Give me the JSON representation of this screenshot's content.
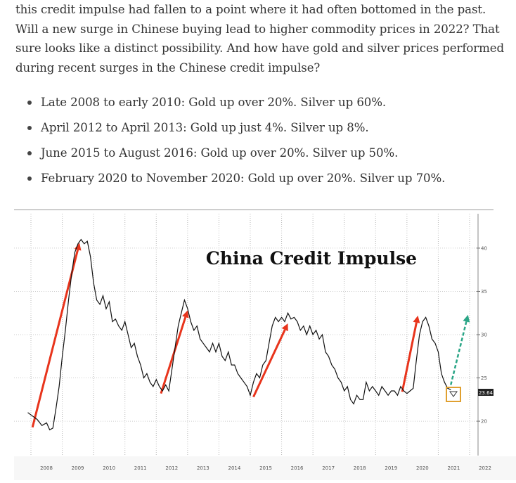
{
  "article": {
    "paragraph": "this credit impulse had fallen to a point where it had often bottomed in the past. Will a new surge in Chinese buying lead to higher commodity prices in 2022? That sure looks like a distinct possibility. And how have gold and silver prices performed during recent surges in the Chinese credit impulse?",
    "bullets": [
      "Late 2008 to early 2010: Gold up over 20%. Silver up 60%.",
      "April 2012 to April 2013: Gold up just 4%. Silver up 8%.",
      "June 2015 to August 2016: Gold up over 20%. Silver up 50%.",
      "February 2020 to November 2020: Gold up over 20%. Silver up 70%."
    ]
  },
  "chart_data": {
    "type": "line",
    "title": "China Credit Impulse",
    "xlabel": "",
    "ylabel": "",
    "x_ticks": [
      "2008",
      "2009",
      "2010",
      "2011",
      "2012",
      "2013",
      "2014",
      "2015",
      "2016",
      "2017",
      "2018",
      "2019",
      "2020",
      "2021",
      "2022"
    ],
    "y_ticks": [
      "20",
      "25",
      "30",
      "35",
      "40"
    ],
    "ylim": [
      17,
      43
    ],
    "xlim": [
      2008.0,
      2022.4
    ],
    "last_value": "23.64",
    "grid": true,
    "series": [
      {
        "x": [
          2007.9,
          2008.05,
          2008.2,
          2008.35,
          2008.5,
          2008.6,
          2008.7,
          2008.8,
          2008.9,
          2009.0,
          2009.1,
          2009.2,
          2009.3,
          2009.4,
          2009.5,
          2009.6,
          2009.7,
          2009.8,
          2009.9,
          2010.0,
          2010.1,
          2010.2,
          2010.3,
          2010.4,
          2010.5,
          2010.6,
          2010.7,
          2010.8,
          2010.9,
          2011.0,
          2011.1,
          2011.2,
          2011.3,
          2011.4,
          2011.5,
          2011.6,
          2011.7,
          2011.8,
          2011.9,
          2012.0,
          2012.1,
          2012.2,
          2012.3,
          2012.4,
          2012.5,
          2012.6,
          2012.7,
          2012.8,
          2012.9,
          2013.0,
          2013.1,
          2013.2,
          2013.3,
          2013.4,
          2013.5,
          2013.6,
          2013.7,
          2013.8,
          2013.9,
          2014.0,
          2014.1,
          2014.2,
          2014.3,
          2014.4,
          2014.5,
          2014.6,
          2014.7,
          2014.8,
          2014.9,
          2015.0,
          2015.1,
          2015.2,
          2015.3,
          2015.4,
          2015.5,
          2015.6,
          2015.7,
          2015.8,
          2015.9,
          2016.0,
          2016.1,
          2016.2,
          2016.3,
          2016.4,
          2016.5,
          2016.6,
          2016.7,
          2016.8,
          2016.9,
          2017.0,
          2017.1,
          2017.2,
          2017.3,
          2017.4,
          2017.5,
          2017.6,
          2017.7,
          2017.8,
          2017.9,
          2018.0,
          2018.1,
          2018.2,
          2018.3,
          2018.4,
          2018.5,
          2018.6,
          2018.7,
          2018.8,
          2018.9,
          2019.0,
          2019.1,
          2019.2,
          2019.3,
          2019.4,
          2019.5,
          2019.6,
          2019.7,
          2019.8,
          2019.9,
          2020.0,
          2020.1,
          2020.2,
          2020.3,
          2020.4,
          2020.5,
          2020.6,
          2020.7,
          2020.8,
          2020.9,
          2021.0,
          2021.1,
          2021.2,
          2021.3,
          2021.4
        ],
        "y": [
          21.0,
          20.6,
          20.2,
          19.5,
          19.8,
          19.0,
          19.2,
          21.5,
          24.0,
          27.5,
          30.5,
          34.0,
          37.0,
          39.5,
          40.5,
          41.0,
          40.5,
          40.8,
          39.0,
          36.0,
          34.0,
          33.5,
          34.5,
          33.0,
          33.8,
          31.5,
          31.8,
          31.0,
          30.5,
          31.5,
          30.0,
          28.5,
          29.0,
          27.5,
          26.5,
          25.0,
          25.5,
          24.5,
          24.0,
          24.8,
          24.0,
          23.5,
          24.2,
          23.5,
          26.0,
          28.5,
          31.0,
          32.5,
          34.0,
          33.0,
          31.5,
          30.5,
          31.0,
          29.5,
          29.0,
          28.5,
          28.0,
          29.0,
          28.0,
          29.0,
          27.5,
          27.0,
          28.0,
          26.5,
          26.5,
          25.5,
          25.0,
          24.5,
          24.0,
          23.0,
          24.5,
          25.5,
          25.0,
          26.5,
          27.0,
          29.0,
          31.0,
          32.0,
          31.5,
          32.0,
          31.5,
          32.5,
          31.8,
          32.0,
          31.5,
          30.5,
          31.0,
          30.0,
          31.0,
          30.0,
          30.5,
          29.5,
          30.0,
          28.0,
          27.5,
          26.5,
          26.0,
          25.0,
          24.5,
          23.5,
          24.0,
          22.5,
          22.0,
          23.0,
          22.5,
          22.5,
          24.5,
          23.5,
          24.0,
          23.5,
          23.0,
          24.0,
          23.5,
          23.0,
          23.5,
          23.5,
          23.0,
          24.0,
          23.5,
          23.2,
          23.5,
          23.8,
          27.0,
          30.0,
          31.5,
          32.0,
          31.0,
          29.5,
          29.0,
          28.0,
          25.5,
          24.5,
          23.8,
          23.64
        ]
      }
    ]
  }
}
